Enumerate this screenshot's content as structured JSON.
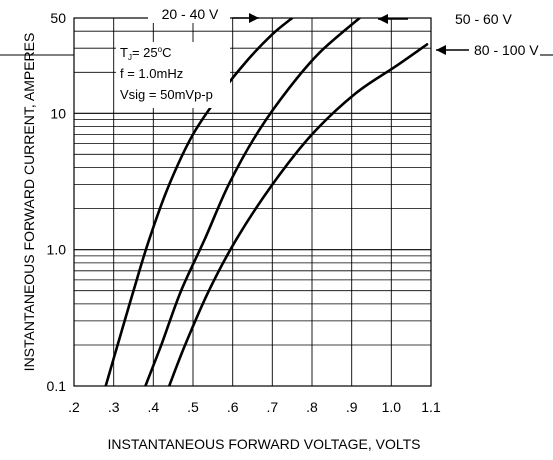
{
  "chart_data": {
    "type": "line",
    "title": "",
    "xlabel": "INSTANTANEOUS FORWARD VOLTAGE, VOLTS",
    "ylabel": "INSTANTANEOUS FORWARD CURRENT, AMPERES",
    "xlim": [
      0.2,
      1.1
    ],
    "ylim": [
      0.1,
      50
    ],
    "yscale": "log",
    "grid": true,
    "x_ticks": [
      ".2",
      ".3",
      ".4",
      ".5",
      ".6",
      ".7",
      ".8",
      ".9",
      "1.0",
      "1.1"
    ],
    "x_tick_values": [
      0.2,
      0.3,
      0.4,
      0.5,
      0.6,
      0.7,
      0.8,
      0.9,
      1.0,
      1.1
    ],
    "y_ticks": [
      "0.1",
      "1.0",
      "10",
      "50"
    ],
    "y_tick_values": [
      0.1,
      1.0,
      10,
      50
    ],
    "conditions": [
      "T",
      "J",
      "= 25",
      "o",
      "C",
      "f = 1.0mHz",
      "Vsig = 50mVp-p"
    ],
    "series": [
      {
        "name": "20 - 40 V",
        "x": [
          0.28,
          0.31,
          0.35,
          0.39,
          0.44,
          0.5,
          0.57,
          0.64,
          0.7,
          0.75
        ],
        "y": [
          0.1,
          0.2,
          0.5,
          1.2,
          3,
          7,
          14,
          25,
          38,
          50
        ]
      },
      {
        "name": "50 - 60 V",
        "x": [
          0.38,
          0.42,
          0.47,
          0.53,
          0.59,
          0.66,
          0.74,
          0.82,
          0.92
        ],
        "y": [
          0.1,
          0.2,
          0.5,
          1.2,
          3,
          7,
          15,
          28,
          50
        ]
      },
      {
        "name": "80 - 100 V",
        "x": [
          0.44,
          0.48,
          0.54,
          0.61,
          0.7,
          0.8,
          0.91,
          1.01,
          1.09
        ],
        "y": [
          0.1,
          0.2,
          0.5,
          1.2,
          3,
          7,
          14,
          22,
          32
        ]
      }
    ]
  }
}
